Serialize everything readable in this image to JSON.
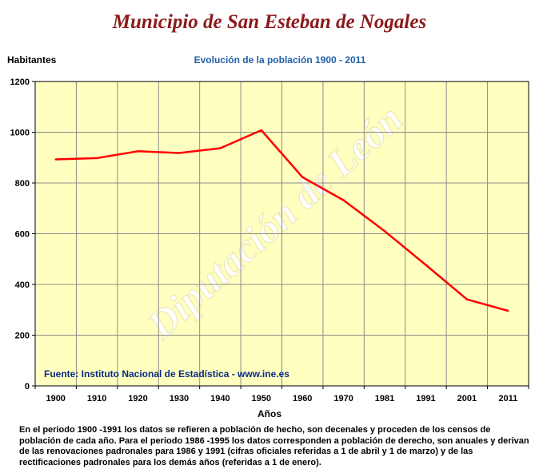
{
  "page": {
    "title": "Municipio de San Esteban de Nogales",
    "footnote": "En el periodo 1900 -1991 los datos se refieren a población de hecho, son decenales y proceden de los censos de población de cada año. Para el periodo 1986 -1995 los datos corresponden a población de derecho, son anuales y derivan de las renovaciones padronales para 1986 y 1991 (cifras oficiales referidas a 1 de abril y 1 de marzo) y de las rectificaciones padronales para los demás años (referidas a 1 de enero)."
  },
  "chart_data": {
    "type": "line",
    "title": "Evolución de la población 1900 - 2011",
    "xlabel": "Años",
    "ylabel": "Habitantes",
    "source": "Fuente: Instituto Nacional de Estadística - www.ine.es",
    "watermark": "Diputación de León",
    "categories": [
      "1900",
      "1910",
      "1920",
      "1930",
      "1940",
      "1950",
      "1960",
      "1970",
      "1981",
      "1991",
      "2001",
      "2011"
    ],
    "values": [
      893,
      898,
      925,
      918,
      937,
      1008,
      823,
      732,
      610,
      477,
      341,
      296
    ],
    "yticks": [
      0,
      200,
      400,
      600,
      800,
      1000,
      1200
    ],
    "ylim": [
      0,
      1200
    ],
    "grid": true,
    "colors": {
      "line": "#ff0000",
      "plot_bg": "#ffffc0",
      "grid": "#8c8c8c",
      "title": "#8b1a1a",
      "subtitle": "#1f5fa8",
      "source": "#0a2a8a",
      "watermark": "#ffffff"
    }
  }
}
